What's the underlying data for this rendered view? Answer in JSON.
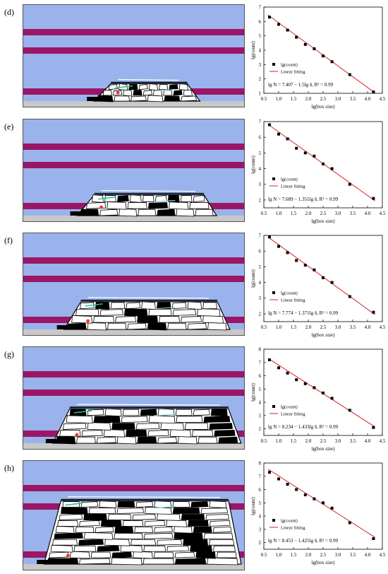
{
  "figure": {
    "colors": {
      "sim_background": "#9ab3ec",
      "key_stratum": "#9b1667",
      "coal_floor": "#c8c8c8",
      "fit_line": "#d62020",
      "data_point": "#000000"
    },
    "panels": [
      {
        "label": "(d)",
        "caved_extent": 0.35,
        "caved_height": 0.25
      },
      {
        "label": "(e)",
        "caved_extent": 0.5,
        "caved_height": 0.3
      },
      {
        "label": "(f)",
        "caved_extent": 0.62,
        "caved_height": 0.4
      },
      {
        "label": "(g)",
        "caved_extent": 0.72,
        "caved_height": 0.5
      },
      {
        "label": "(h)",
        "caved_extent": 0.8,
        "caved_height": 0.85
      }
    ]
  },
  "chart_data": [
    {
      "type": "scatter",
      "xlabel": "lg(box size)",
      "ylabel": "lg(count)",
      "xlim": [
        0.5,
        4.5
      ],
      "ylim": [
        1,
        7
      ],
      "xticks": [
        0.5,
        1.0,
        1.5,
        2.0,
        2.5,
        3.0,
        3.5,
        4.0,
        4.5
      ],
      "yticks": [
        1,
        2,
        3,
        4,
        5,
        6,
        7
      ],
      "legend": [
        "lg(count)",
        "Linear fitting"
      ],
      "legend_placement": "lower-left",
      "equation": "lg N = 7.407 − 1.5lg δ, R² = 0.99",
      "fit": {
        "intercept": 7.407,
        "slope": -1.5
      },
      "x": [
        0.69,
        1.0,
        1.3,
        1.6,
        1.9,
        2.2,
        2.5,
        2.8,
        3.4,
        4.2
      ],
      "y": [
        6.3,
        5.8,
        5.4,
        4.9,
        4.4,
        4.1,
        3.6,
        3.2,
        2.3,
        1.1
      ]
    },
    {
      "type": "scatter",
      "xlabel": "lg(box size)",
      "ylabel": "lg(count)",
      "xlim": [
        0.5,
        4.5
      ],
      "ylim": [
        1.5,
        7
      ],
      "xticks": [
        0.5,
        1.0,
        1.5,
        2.0,
        2.5,
        3.0,
        3.5,
        4.0,
        4.5
      ],
      "yticks": [
        2,
        3,
        4,
        5,
        6,
        7
      ],
      "legend": [
        "lg(count)",
        "Linear fitting"
      ],
      "legend_placement": "lower-left",
      "equation": "lg N = 7.689 − 1.351lg δ, R² = 0.99",
      "fit": {
        "intercept": 7.689,
        "slope": -1.351
      },
      "x": [
        0.69,
        1.0,
        1.3,
        1.6,
        1.9,
        2.2,
        2.5,
        2.8,
        3.4,
        4.2
      ],
      "y": [
        6.8,
        6.2,
        5.9,
        5.3,
        5.0,
        4.8,
        4.3,
        4.0,
        3.0,
        2.1
      ]
    },
    {
      "type": "scatter",
      "xlabel": "lg(box size)",
      "ylabel": "lg(count)",
      "xlim": [
        0.5,
        4.5
      ],
      "ylim": [
        1.5,
        7
      ],
      "xticks": [
        0.5,
        1.0,
        1.5,
        2.0,
        2.5,
        3.0,
        3.5,
        4.0,
        4.5
      ],
      "yticks": [
        2,
        3,
        4,
        5,
        6,
        7
      ],
      "legend": [
        "lg(count)",
        "Linear fitting"
      ],
      "legend_placement": "lower-left",
      "equation": "lg N = 7.774 − 1.371lg δ, R² = 0.99",
      "fit": {
        "intercept": 7.774,
        "slope": -1.371
      },
      "x": [
        0.69,
        1.0,
        1.3,
        1.6,
        1.9,
        2.2,
        2.5,
        2.8,
        3.4,
        4.2
      ],
      "y": [
        6.9,
        6.3,
        5.9,
        5.4,
        5.1,
        4.8,
        4.3,
        4.0,
        3.1,
        2.1
      ]
    },
    {
      "type": "scatter",
      "xlabel": "lg(box size)",
      "ylabel": "lg(count)",
      "xlim": [
        0.5,
        4.5
      ],
      "ylim": [
        1.5,
        8
      ],
      "xticks": [
        0.5,
        1.0,
        1.5,
        2.0,
        2.5,
        3.0,
        3.5,
        4.0,
        4.5
      ],
      "yticks": [
        2,
        3,
        4,
        5,
        6,
        7,
        8
      ],
      "legend": [
        "lg(count)",
        "Linear fitting"
      ],
      "legend_placement": "lower-left",
      "equation": "lg N = 8.234 − 1.433lg δ, R² = 0.99",
      "fit": {
        "intercept": 8.234,
        "slope": -1.433
      },
      "x": [
        0.69,
        1.0,
        1.3,
        1.6,
        1.9,
        2.2,
        2.5,
        2.8,
        3.4,
        4.2
      ],
      "y": [
        7.2,
        6.6,
        6.2,
        5.7,
        5.4,
        5.1,
        4.7,
        4.3,
        3.4,
        2.1
      ]
    },
    {
      "type": "scatter",
      "xlabel": "lg(box size)",
      "ylabel": "lg(count)",
      "xlim": [
        0.5,
        4.5
      ],
      "ylim": [
        1.5,
        8
      ],
      "xticks": [
        0.5,
        1.0,
        1.5,
        2.0,
        2.5,
        3.0,
        3.5,
        4.0,
        4.5
      ],
      "yticks": [
        2,
        3,
        4,
        5,
        6,
        7,
        8
      ],
      "legend": [
        "lg(count)",
        "Linear fitting"
      ],
      "legend_placement": "lower-left",
      "equation": "lg N = 8.453 − 1.425lg δ, R² = 0.99",
      "fit": {
        "intercept": 8.453,
        "slope": -1.425
      },
      "x": [
        0.69,
        1.0,
        1.3,
        1.6,
        1.9,
        2.2,
        2.5,
        2.8,
        3.4,
        4.2
      ],
      "y": [
        7.3,
        6.8,
        6.4,
        6.0,
        5.6,
        5.3,
        5.0,
        4.6,
        3.5,
        2.3
      ]
    }
  ]
}
